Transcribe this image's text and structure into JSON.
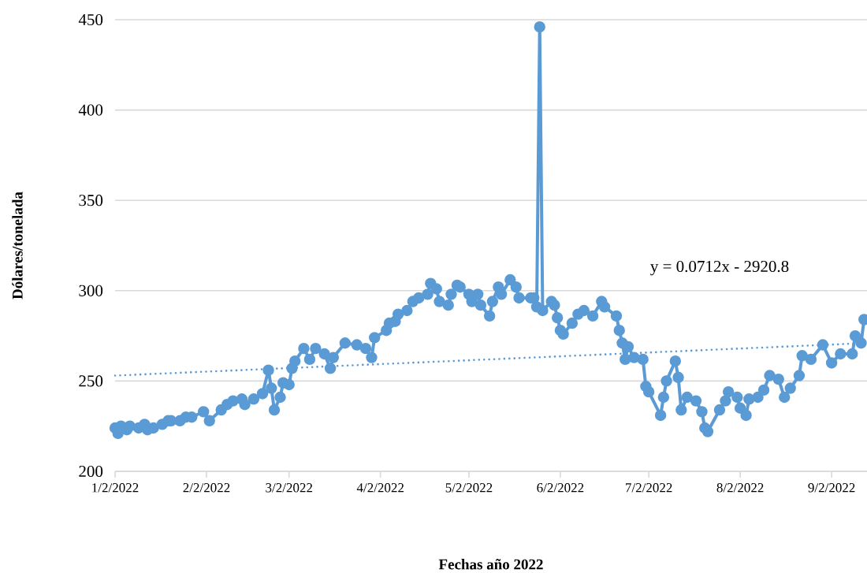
{
  "chart_data": {
    "type": "line",
    "xlabel": "Fechas año 2022",
    "ylabel": "Dólares/tonelada",
    "annotations": [
      "y = 0.0712x - 2920.8"
    ],
    "xlim": [
      "2022-01-02",
      "2022-09-14"
    ],
    "ylim": [
      200,
      450
    ],
    "xticks": [
      {
        "value": "2022-01-02",
        "label": "1/2/2022"
      },
      {
        "value": "2022-02-02",
        "label": "2/2/2022"
      },
      {
        "value": "2022-03-02",
        "label": "3/2/2022"
      },
      {
        "value": "2022-04-02",
        "label": "4/2/2022"
      },
      {
        "value": "2022-05-02",
        "label": "5/2/2022"
      },
      {
        "value": "2022-06-02",
        "label": "6/2/2022"
      },
      {
        "value": "2022-07-02",
        "label": "7/2/2022"
      },
      {
        "value": "2022-08-02",
        "label": "8/2/2022"
      },
      {
        "value": "2022-09-02",
        "label": "9/2/2022"
      }
    ],
    "yticks": [
      200,
      250,
      300,
      350,
      400,
      450
    ],
    "grid": "y",
    "marker": "circle",
    "line_style": "solid",
    "series": [
      {
        "color": "#5b9bd5",
        "x": [
          "2022-01-02",
          "2022-01-03",
          "2022-01-04",
          "2022-01-06",
          "2022-01-07",
          "2022-01-10",
          "2022-01-12",
          "2022-01-13",
          "2022-01-15",
          "2022-01-18",
          "2022-01-20",
          "2022-01-21",
          "2022-01-24",
          "2022-01-26",
          "2022-01-28",
          "2022-02-01",
          "2022-02-03",
          "2022-02-07",
          "2022-02-09",
          "2022-02-11",
          "2022-02-14",
          "2022-02-15",
          "2022-02-18",
          "2022-02-21",
          "2022-02-23",
          "2022-02-24",
          "2022-02-25",
          "2022-02-27",
          "2022-02-28",
          "2022-03-02",
          "2022-03-03",
          "2022-03-04",
          "2022-03-07",
          "2022-03-09",
          "2022-03-11",
          "2022-03-14",
          "2022-03-16",
          "2022-03-17",
          "2022-03-21",
          "2022-03-25",
          "2022-03-28",
          "2022-03-30",
          "2022-03-31",
          "2022-04-04",
          "2022-04-05",
          "2022-04-07",
          "2022-04-08",
          "2022-04-11",
          "2022-04-13",
          "2022-04-15",
          "2022-04-18",
          "2022-04-19",
          "2022-04-21",
          "2022-04-22",
          "2022-04-25",
          "2022-04-26",
          "2022-04-28",
          "2022-04-29",
          "2022-05-02",
          "2022-05-03",
          "2022-05-05",
          "2022-05-06",
          "2022-05-09",
          "2022-05-10",
          "2022-05-12",
          "2022-05-13",
          "2022-05-16",
          "2022-05-18",
          "2022-05-19",
          "2022-05-23",
          "2022-05-24",
          "2022-05-25",
          "2022-05-26",
          "2022-05-27",
          "2022-05-30",
          "2022-05-31",
          "2022-06-01",
          "2022-06-02",
          "2022-06-03",
          "2022-06-06",
          "2022-06-08",
          "2022-06-10",
          "2022-06-13",
          "2022-06-16",
          "2022-06-17",
          "2022-06-21",
          "2022-06-22",
          "2022-06-23",
          "2022-06-24",
          "2022-06-25",
          "2022-06-27",
          "2022-06-30",
          "2022-07-01",
          "2022-07-02",
          "2022-07-06",
          "2022-07-07",
          "2022-07-08",
          "2022-07-11",
          "2022-07-12",
          "2022-07-13",
          "2022-07-15",
          "2022-07-18",
          "2022-07-20",
          "2022-07-21",
          "2022-07-22",
          "2022-07-26",
          "2022-07-28",
          "2022-07-29",
          "2022-08-01",
          "2022-08-02",
          "2022-08-04",
          "2022-08-05",
          "2022-08-08",
          "2022-08-10",
          "2022-08-12",
          "2022-08-15",
          "2022-08-17",
          "2022-08-19",
          "2022-08-22",
          "2022-08-23",
          "2022-08-26",
          "2022-08-30",
          "2022-09-02",
          "2022-09-05",
          "2022-09-09",
          "2022-09-10",
          "2022-09-12",
          "2022-09-13"
        ],
        "values": [
          224,
          221,
          225,
          223,
          225,
          224,
          226,
          223,
          224,
          226,
          228,
          228,
          228,
          230,
          230,
          233,
          228,
          234,
          237,
          239,
          240,
          237,
          240,
          243,
          256,
          246,
          234,
          241,
          249,
          248,
          257,
          261,
          268,
          262,
          268,
          265,
          257,
          263,
          271,
          270,
          268,
          263,
          274,
          278,
          282,
          283,
          287,
          289,
          294,
          296,
          298,
          304,
          301,
          294,
          292,
          298,
          303,
          302,
          298,
          294,
          298,
          292,
          286,
          294,
          302,
          298,
          306,
          302,
          296,
          296,
          296,
          291,
          446,
          289,
          294,
          292,
          285,
          278,
          276,
          282,
          287,
          289,
          286,
          294,
          291,
          286,
          278,
          271,
          262,
          269,
          263,
          262,
          247,
          244,
          231,
          241,
          250,
          261,
          252,
          234,
          241,
          239,
          233,
          224,
          222,
          234,
          239,
          244,
          241,
          235,
          231,
          240,
          241,
          245,
          253,
          251,
          241,
          246,
          253,
          264,
          262,
          270,
          260,
          265,
          265,
          275,
          271,
          284
        ]
      },
      {
        "type": "line",
        "color": "#5b9bd5",
        "marker": "none",
        "line_style": "dotted",
        "x": [
          "2022-01-02",
          "2022-09-14"
        ],
        "values": [
          253,
          271
        ]
      }
    ]
  }
}
